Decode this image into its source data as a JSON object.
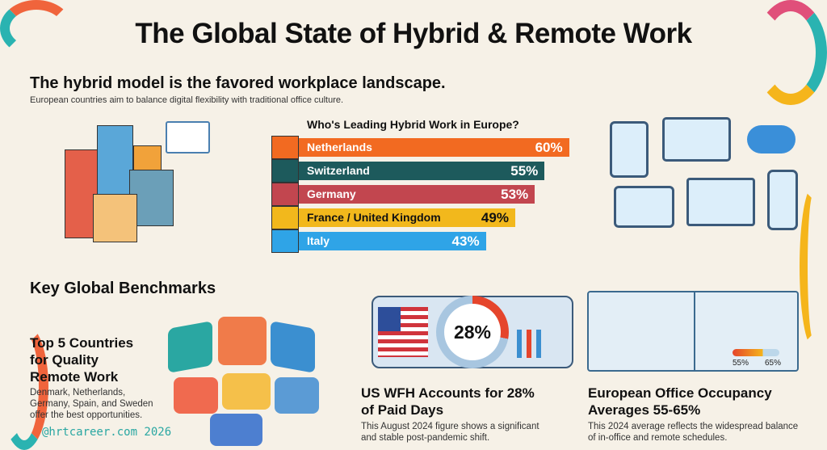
{
  "title": "The Global State of Hybrid & Remote Work",
  "section1": {
    "heading": "The hybrid model is the favored workplace landscape.",
    "subtext": "European countries aim to balance digital flexibility with traditional office culture."
  },
  "chart_data": {
    "type": "bar",
    "orientation": "horizontal",
    "title": "Who's Leading Hybrid Work in Europe?",
    "categories": [
      "Netherlands",
      "Switzerland",
      "Germany",
      "France / United Kingdom",
      "Italy"
    ],
    "values": [
      60,
      55,
      53,
      49,
      43
    ],
    "labels": [
      "60%",
      "55%",
      "53%",
      "49%",
      "43%"
    ],
    "colors": [
      "#f26a21",
      "#1d5a5c",
      "#c2464f",
      "#f2b81c",
      "#2fa4e7"
    ],
    "label_colors": [
      "#ffffff",
      "#ffffff",
      "#ffffff",
      "#111111",
      "#ffffff"
    ]
  },
  "benchmarks": {
    "heading": "Key Global Benchmarks",
    "top5": {
      "title": "Top 5 Countries for Quality Remote Work",
      "desc": "Denmark, Netherlands, Germany, Spain, and Sweden offer the best opportunities."
    },
    "us": {
      "badge": "28%",
      "title": "US WFH Accounts for 28% of Paid Days",
      "desc": "This August 2024 figure shows a significant and stable post-pandemic shift."
    },
    "europe": {
      "gauge_low": "55%",
      "gauge_high": "65%",
      "title": "European Office Occupancy Averages 55-65%",
      "desc": "This 2024 average reflects the widespread balance of in-office and remote schedules."
    }
  },
  "watermark": "@hrtcareer.com 2026"
}
